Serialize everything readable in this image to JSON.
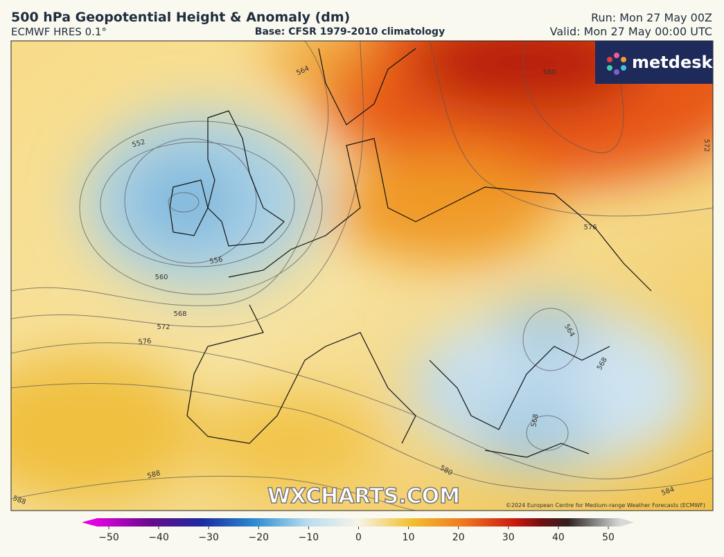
{
  "header": {
    "title": "500 hPa Geopotential Height & Anomaly (dm)",
    "model": "ECMWF HRES 0.1°",
    "base": "Base: CFSR 1979-2010 climatology",
    "run": "Run: Mon 27 May 00Z",
    "valid": "Valid: Mon 27 May 00:00 UTC"
  },
  "logo": "metdesk",
  "watermark": "WXCHARTS.COM",
  "copyright": "©2024 European Centre for Medium-range Weather Forecasts (ECMWF)",
  "contour_labels": [
    580,
    564,
    572,
    552,
    576,
    556,
    560,
    568,
    572,
    576,
    564,
    568,
    568,
    580,
    588,
    588,
    584
  ],
  "colorbar": {
    "ticks": [
      {
        "value": -50,
        "label": "−50"
      },
      {
        "value": -40,
        "label": "−40"
      },
      {
        "value": -30,
        "label": "−30"
      },
      {
        "value": -20,
        "label": "−20"
      },
      {
        "value": -10,
        "label": "−10"
      },
      0,
      10,
      20,
      30,
      40,
      50
    ]
  }
}
